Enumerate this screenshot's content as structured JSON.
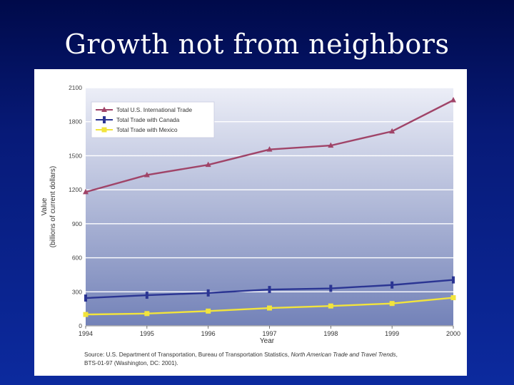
{
  "slide": {
    "title": "Growth not from neighbors"
  },
  "colors": {
    "us_total": "#a04468",
    "canada": "#2b3593",
    "mexico": "#f2e43c",
    "plot_top": "#eceef7",
    "plot_bottom": "#7382b8"
  },
  "chart_data": {
    "type": "line",
    "title": "",
    "xlabel": "Year",
    "ylabel": "Value (billions of current dollars)",
    "ylabel_line1": "Value",
    "ylabel_line2": "(billions of current dollars)",
    "x": [
      1994,
      1995,
      1996,
      1997,
      1998,
      1999,
      2000
    ],
    "x_tick_labels": [
      "1994",
      "1995",
      "1996",
      "1997",
      "1998",
      "1999",
      "2000"
    ],
    "ylim": [
      0,
      2100
    ],
    "y_ticks": [
      0,
      300,
      600,
      900,
      1200,
      1500,
      1800,
      2100
    ],
    "y_tick_labels": [
      "0",
      "300",
      "600",
      "900",
      "1200",
      "1500",
      "1800",
      "2100"
    ],
    "grid": true,
    "legend_position": "top-left",
    "series": [
      {
        "name": "Total U.S. International Trade",
        "key": "us_total",
        "marker": "triangle",
        "values": [
          1180,
          1330,
          1420,
          1555,
          1590,
          1715,
          1990
        ]
      },
      {
        "name": "Total Trade with Canada",
        "key": "canada",
        "marker": "bar",
        "values": [
          245,
          270,
          290,
          320,
          330,
          360,
          405
        ]
      },
      {
        "name": "Total Trade with Mexico",
        "key": "mexico",
        "marker": "square",
        "values": [
          100,
          108,
          130,
          157,
          175,
          197,
          248
        ]
      }
    ],
    "source": {
      "prefix": "Source: U.S. Department of Transportation, Bureau of Transportation Statistics, ",
      "italic": "North American Trade and Travel Trends",
      "suffix": ",",
      "line2": "BTS-01-97 (Washington, DC: 2001)."
    }
  }
}
